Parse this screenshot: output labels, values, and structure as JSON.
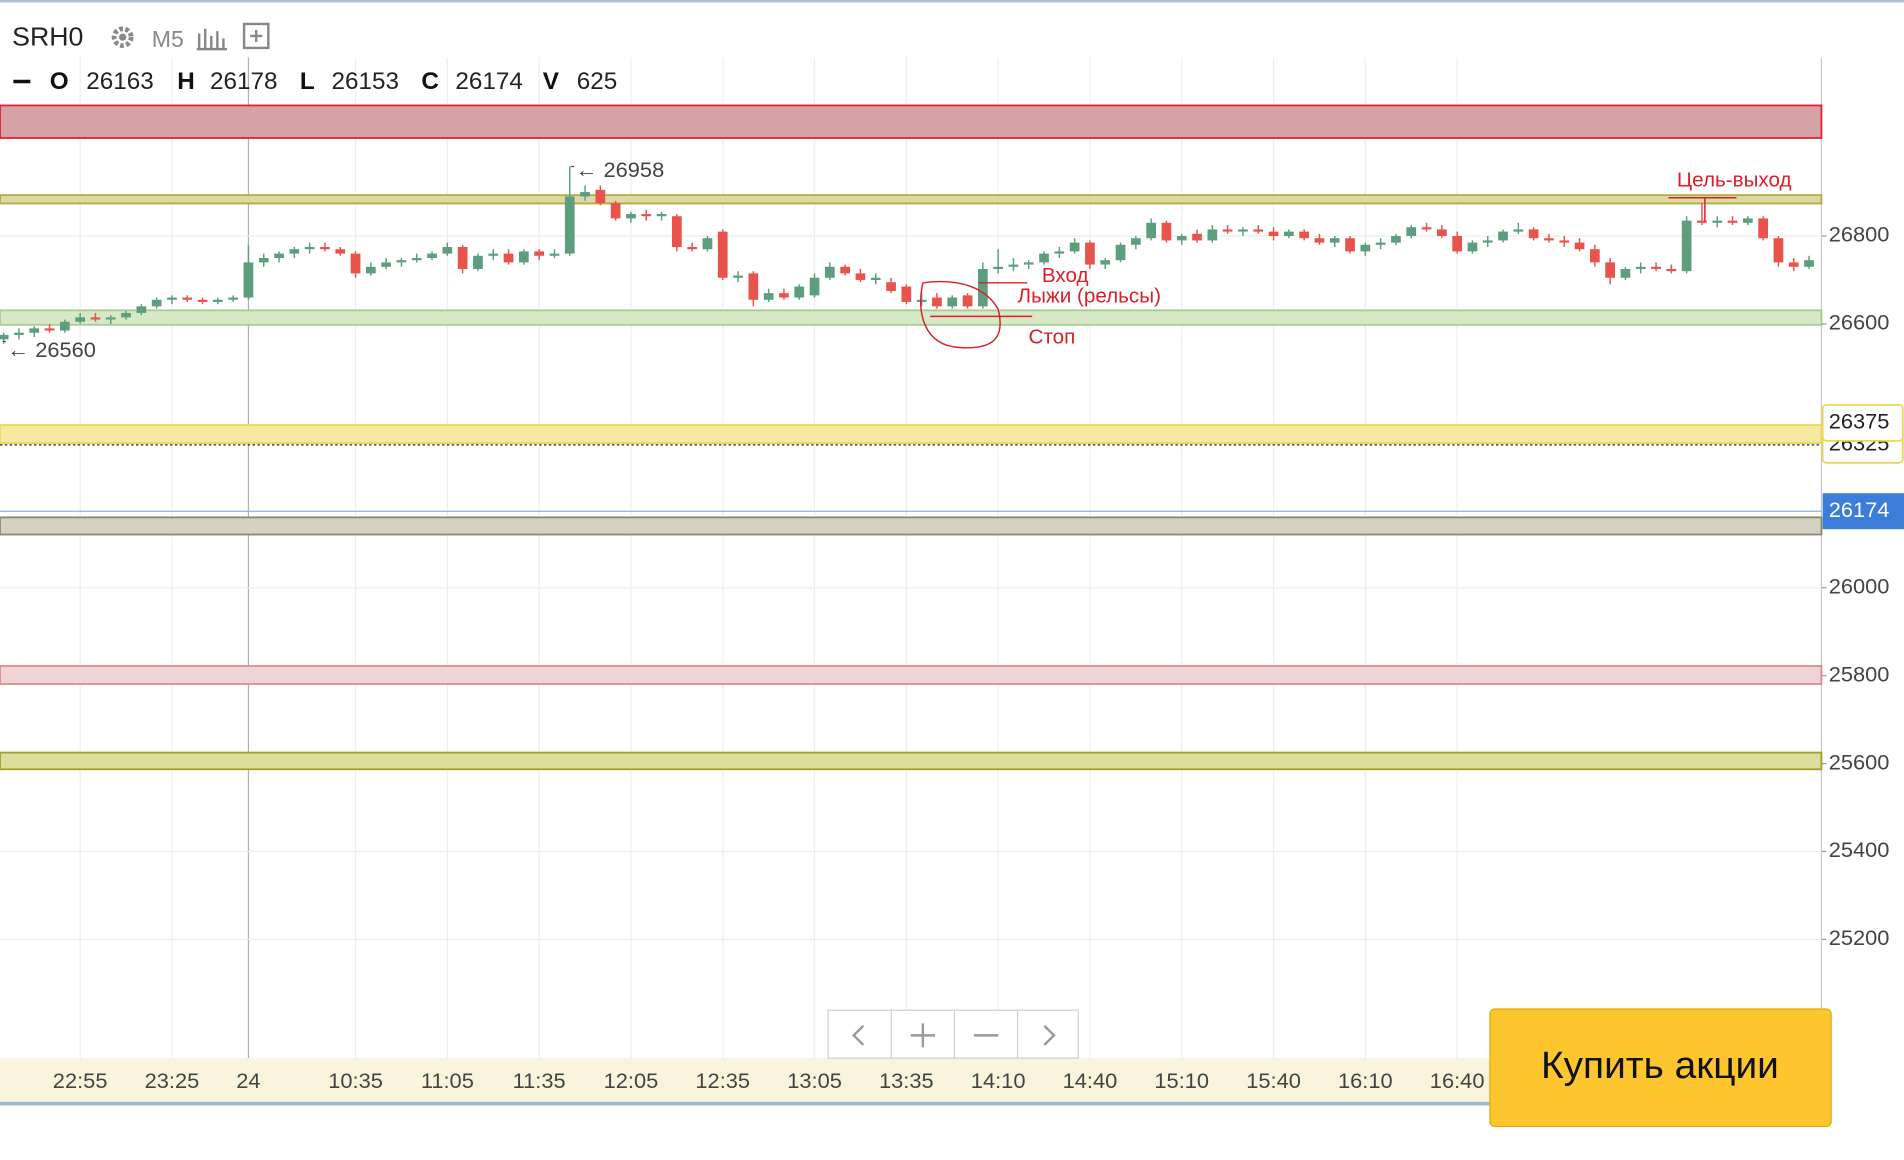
{
  "header": {
    "symbol": "SRH0",
    "timeframe": "M5",
    "ohlc_labels": [
      "O",
      "H",
      "L",
      "C",
      "V"
    ],
    "ohlc_values": [
      26163,
      26178,
      26153,
      26174,
      625
    ]
  },
  "chart_data": {
    "type": "candlestick",
    "categories": [
      null,
      null,
      null,
      null,
      null,
      "22:55",
      null,
      null,
      null,
      null,
      null,
      "23:25",
      null,
      null,
      null,
      null,
      "24",
      null,
      null,
      null,
      null,
      null,
      null,
      "10:35",
      null,
      null,
      null,
      null,
      null,
      "11:05",
      null,
      null,
      null,
      null,
      null,
      "11:35",
      null,
      null,
      null,
      null,
      null,
      "12:05",
      null,
      null,
      null,
      null,
      null,
      "12:35",
      null,
      null,
      null,
      null,
      null,
      "13:05",
      null,
      null,
      null,
      null,
      null,
      "13:35",
      null,
      null,
      null,
      null,
      null,
      "14:10",
      null,
      null,
      null,
      null,
      null,
      "14:40",
      null,
      null,
      null,
      null,
      null,
      "15:10",
      null,
      null,
      null,
      null,
      null,
      "15:40",
      null,
      null,
      null,
      null,
      null,
      "16:10",
      null,
      null,
      null,
      null,
      null,
      "16:40",
      null,
      null,
      null,
      null,
      null,
      null,
      null,
      null,
      null,
      null,
      null,
      null,
      null,
      null,
      null,
      null,
      null,
      null,
      null,
      null,
      null,
      null,
      null
    ],
    "open": [
      26565,
      26575,
      26580,
      26590,
      26585,
      26605,
      26615,
      26610,
      26615,
      26625,
      26640,
      26655,
      26660,
      26655,
      26650,
      26655,
      26660,
      26740,
      26750,
      26760,
      26770,
      26775,
      26770,
      26760,
      26715,
      26730,
      26740,
      26745,
      26750,
      26760,
      26775,
      26725,
      26755,
      26760,
      26740,
      26765,
      26755,
      26760,
      26890,
      26905,
      26875,
      26840,
      26850,
      26845,
      26845,
      26775,
      26770,
      26810,
      26705,
      26715,
      26655,
      26670,
      26660,
      26665,
      26705,
      26730,
      26715,
      26700,
      26695,
      26685,
      26650,
      26660,
      26640,
      26665,
      26640,
      26725,
      26730,
      26735,
      26740,
      26760,
      26765,
      26785,
      26735,
      26745,
      26780,
      26795,
      26830,
      26790,
      26805,
      26790,
      26815,
      26810,
      26815,
      26810,
      26800,
      26810,
      26795,
      26785,
      26795,
      26765,
      26780,
      26785,
      26800,
      26820,
      26815,
      26800,
      26765,
      26785,
      26790,
      26810,
      26815,
      26795,
      26790,
      26785,
      26770,
      26740,
      26705,
      26725,
      26730,
      26725,
      26720,
      26835,
      26830,
      26835,
      26830,
      26840,
      26795,
      26740,
      26730
    ],
    "high": [
      26580,
      26590,
      26595,
      26600,
      26610,
      26625,
      26625,
      26620,
      26630,
      26645,
      26660,
      26665,
      26665,
      26660,
      26660,
      26665,
      26780,
      26760,
      26765,
      26775,
      26785,
      26785,
      26775,
      26765,
      26740,
      26750,
      26750,
      26760,
      26765,
      26785,
      26780,
      26760,
      26770,
      26770,
      26770,
      26770,
      26770,
      26958,
      26915,
      26915,
      26880,
      26855,
      26860,
      26855,
      26850,
      26785,
      26800,
      26815,
      26720,
      26720,
      26680,
      26680,
      26690,
      26715,
      26740,
      26735,
      26725,
      26715,
      26705,
      26690,
      26670,
      26670,
      26665,
      26670,
      26740,
      26770,
      26750,
      26745,
      26765,
      26775,
      26795,
      26790,
      26750,
      26785,
      26800,
      26840,
      26835,
      26805,
      26815,
      26825,
      26825,
      26820,
      26825,
      26820,
      26815,
      26815,
      26805,
      26800,
      26800,
      26785,
      26795,
      26805,
      26825,
      26830,
      26825,
      26810,
      26790,
      26800,
      26815,
      26830,
      26820,
      26805,
      26800,
      26795,
      26780,
      26750,
      26730,
      26740,
      26740,
      26735,
      26845,
      26875,
      26845,
      26845,
      26845,
      26845,
      26800,
      26750,
      26755
    ],
    "low": [
      26555,
      26565,
      26570,
      26580,
      26580,
      26600,
      26605,
      26600,
      26610,
      26620,
      26635,
      26645,
      26650,
      26645,
      26645,
      26650,
      26655,
      26730,
      26740,
      26750,
      26760,
      26765,
      26755,
      26705,
      26710,
      26725,
      26730,
      26740,
      26745,
      26755,
      26715,
      26720,
      26745,
      26735,
      26735,
      26745,
      26750,
      26755,
      26880,
      26870,
      26835,
      26830,
      26835,
      26835,
      26765,
      26765,
      26765,
      26700,
      26695,
      26640,
      26650,
      26655,
      26655,
      26660,
      26700,
      26710,
      26695,
      26690,
      26670,
      26645,
      26640,
      26635,
      26635,
      26635,
      26635,
      26715,
      26720,
      26725,
      26735,
      26750,
      26760,
      26725,
      26725,
      26740,
      26770,
      26790,
      26785,
      26780,
      26785,
      26785,
      26805,
      26800,
      26805,
      26790,
      26795,
      26790,
      26780,
      26775,
      26760,
      26755,
      26770,
      26780,
      26795,
      26810,
      26795,
      26760,
      26760,
      26775,
      26785,
      26805,
      26790,
      26785,
      26775,
      26765,
      26730,
      26690,
      26700,
      26715,
      26720,
      26715,
      26715,
      26825,
      26820,
      26825,
      26825,
      26790,
      26730,
      26720,
      26725
    ],
    "close": [
      26575,
      26580,
      26590,
      26585,
      26605,
      26615,
      26610,
      26615,
      26625,
      26640,
      26655,
      26660,
      26655,
      26650,
      26655,
      26660,
      26740,
      26750,
      26760,
      26770,
      26775,
      26770,
      26760,
      26715,
      26730,
      26740,
      26745,
      26750,
      26760,
      26775,
      26725,
      26755,
      26760,
      26740,
      26765,
      26755,
      26760,
      26890,
      26900,
      26875,
      26840,
      26850,
      26845,
      26850,
      26775,
      26770,
      26795,
      26705,
      26710,
      26655,
      26670,
      26660,
      26685,
      26705,
      26730,
      26715,
      26700,
      26705,
      26675,
      26650,
      26655,
      26640,
      26660,
      26640,
      26725,
      26730,
      26735,
      26740,
      26760,
      26765,
      26785,
      26735,
      26745,
      26780,
      26795,
      26830,
      26790,
      26800,
      26790,
      26815,
      26810,
      26815,
      26810,
      26800,
      26810,
      26795,
      26785,
      26795,
      26765,
      26780,
      26785,
      26800,
      26820,
      26815,
      26800,
      26765,
      26785,
      26790,
      26810,
      26815,
      26795,
      26790,
      26785,
      26770,
      26740,
      26705,
      26725,
      26730,
      26725,
      26720,
      26835,
      26830,
      26835,
      26830,
      26840,
      26795,
      26740,
      26730,
      26745
    ],
    "up_color": "#5c9e7e",
    "down_color": "#e8544b",
    "ylim": [
      24930,
      27206
    ],
    "yticks": [
      26800,
      26600,
      26000,
      25800,
      25600,
      25400,
      25200
    ],
    "grid": true,
    "levels": [
      {
        "from": 27023,
        "to": 27097,
        "fill": "#d6a2a6",
        "stroke": "#e0242c"
      },
      {
        "from": 26874,
        "to": 26893,
        "fill": "#dcd9a6",
        "stroke": "#b3ad3a"
      },
      {
        "from": 26598,
        "to": 26631,
        "fill": "#d7e8c6",
        "stroke": "#a9cc8f"
      },
      {
        "from": 26329,
        "to": 26370,
        "fill": "#f6eaa0",
        "stroke": "#e8d75c"
      },
      {
        "from": 26121,
        "to": 26160,
        "fill": "#d6d2c2",
        "stroke": "#8a8a6a"
      },
      {
        "from": 25781,
        "to": 25822,
        "fill": "#f0d3d5",
        "stroke": "#e08a90"
      },
      {
        "from": 25587,
        "to": 25625,
        "fill": "#dede9c",
        "stroke": "#9fa030"
      }
    ],
    "price_tags": [
      26375,
      26325
    ],
    "last_price": 26174,
    "annotations": [
      {
        "value": 26958,
        "label": "← 26958"
      },
      {
        "value": 26560,
        "label": "← 26560"
      }
    ],
    "notes": [
      "Вход",
      "Лыжи (рельсы)",
      "Стоп",
      "Цель-выход"
    ]
  },
  "buy_button": "Купить акции"
}
